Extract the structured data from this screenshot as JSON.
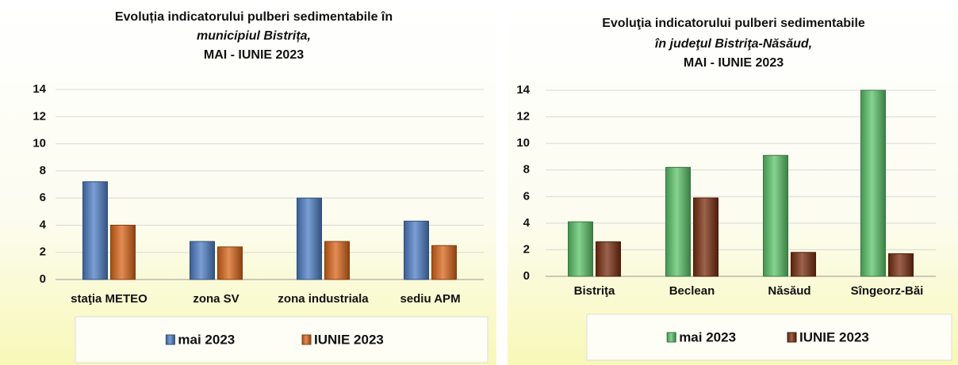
{
  "chart_data": [
    {
      "type": "bar",
      "title": [
        "Evoluția indicatorului pulberi sedimentabile în",
        "municipiul Bistrița,",
        "MAI - IUNIE 2023"
      ],
      "categories": [
        "staţia METEO",
        "zona SV",
        "zona industriala",
        "sediu APM"
      ],
      "series": [
        {
          "name": "mai 2023",
          "color": "#4f7fc7",
          "values": [
            7.2,
            2.8,
            6.0,
            4.3
          ]
        },
        {
          "name": "IUNIE 2023",
          "color": "#d9661a",
          "values": [
            4.0,
            2.4,
            2.8,
            2.5
          ]
        }
      ],
      "ylim": [
        0,
        14
      ],
      "yticks": [
        0,
        2,
        4,
        6,
        8,
        10,
        12,
        14
      ],
      "grid": true,
      "legend": "bottom"
    },
    {
      "type": "bar",
      "title": [
        "Evoluţia indicatorului pulberi sedimentabile",
        "în judeţul Bistriţa-Năsăud,",
        "MAI - IUNIE 2023"
      ],
      "categories": [
        "Bistriţa",
        "Beclean",
        "Năsăud",
        "Sîngeorz-Băi"
      ],
      "series": [
        {
          "name": "mai 2023",
          "color": "#5cc46a",
          "values": [
            4.1,
            8.2,
            9.1,
            14.0
          ]
        },
        {
          "name": "IUNIE 2023",
          "color": "#7a2e10",
          "values": [
            2.6,
            5.9,
            1.8,
            1.7
          ]
        }
      ],
      "ylim": [
        0,
        14
      ],
      "yticks": [
        0,
        2,
        4,
        6,
        8,
        10,
        12,
        14
      ],
      "grid": true,
      "legend": "bottom"
    }
  ]
}
